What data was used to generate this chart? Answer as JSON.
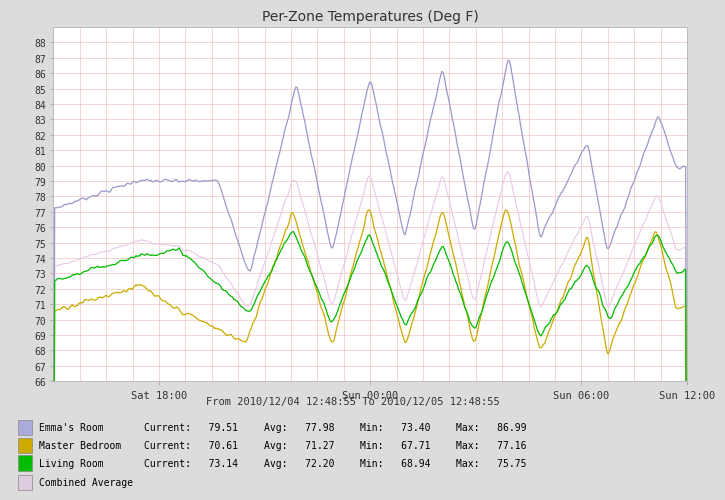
{
  "title": "Per-Zone Temperatures (Deg F)",
  "subtitle": "From 2010/12/04 12:48:55 To 2010/12/05 12:48:55",
  "ylim": [
    66,
    89
  ],
  "yticks": [
    66,
    67,
    68,
    69,
    70,
    71,
    72,
    73,
    74,
    75,
    76,
    77,
    78,
    79,
    80,
    81,
    82,
    83,
    84,
    85,
    86,
    87,
    88
  ],
  "xtick_labels": [
    "Sat 18:00",
    "Sun 00:00",
    "Sun 06:00",
    "Sun 12:00"
  ],
  "xtick_positions": [
    0.167,
    0.5,
    0.833,
    1.0
  ],
  "bg_color": "#dcdcdc",
  "plot_bg": "#ffffff",
  "grid_hcolor": "#f5c0c0",
  "grid_vcolor": "#f5c0c0",
  "colors": {
    "emmas_room": "#9999cc",
    "master_bedroom": "#ccaa00",
    "living_room": "#00bb00",
    "combined_avg": "#e8c8e8"
  },
  "legend_entries": [
    {
      "label": "Emma's Room",
      "color": "#aaaadd",
      "filled": true
    },
    {
      "label": "Master Bedroom",
      "color": "#ccaa00",
      "filled": true
    },
    {
      "label": "Living Room",
      "color": "#00bb00",
      "filled": true
    },
    {
      "label": "Combined Average",
      "color": "#ddccdd",
      "filled": true
    }
  ],
  "legend_stats": [
    {
      "current": "79.51",
      "avg": "77.98",
      "min": "73.40",
      "max": "86.99"
    },
    {
      "current": "70.61",
      "avg": "71.27",
      "min": "67.71",
      "max": "77.16"
    },
    {
      "current": "73.14",
      "avg": "72.20",
      "min": "68.94",
      "max": "75.75"
    }
  ],
  "n_points": 500
}
